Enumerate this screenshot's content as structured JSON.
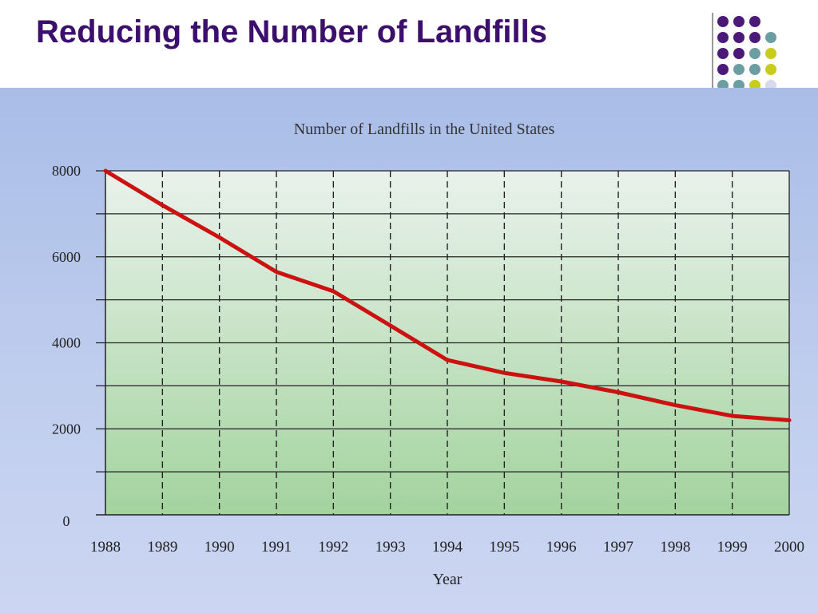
{
  "slide": {
    "title": "Reducing the Number of Landfills"
  },
  "colors": {
    "title": "#3b0f6b",
    "line": "#cc1111",
    "purple": "#4b1a78",
    "teal": "#6b9ea0",
    "lime": "#c8cc1a",
    "lavender": "#d8d8ee"
  },
  "decor_dots": [
    [
      "purple",
      "purple",
      "purple",
      null
    ],
    [
      "purple",
      "purple",
      "purple",
      "teal"
    ],
    [
      "purple",
      "purple",
      "teal",
      "lime"
    ],
    [
      "purple",
      "teal",
      "teal",
      "lime"
    ],
    [
      "teal",
      "teal",
      "lime",
      "lavender"
    ]
  ],
  "chart_data": {
    "type": "line",
    "title": "Number of Landfills in the United States",
    "xlabel": "Year",
    "ylabel": "",
    "categories": [
      "1988",
      "1989",
      "1990",
      "1991",
      "1992",
      "1993",
      "1994",
      "1995",
      "1996",
      "1997",
      "1998",
      "1999",
      "2000"
    ],
    "series": [
      {
        "values": [
          8000,
          7200,
          6450,
          5650,
          5200,
          4400,
          3600,
          3300,
          3100,
          2850,
          2550,
          2300,
          2200
        ]
      }
    ],
    "ylim": [
      0,
      8000
    ],
    "yticks": [
      0,
      2000,
      4000,
      6000,
      8000
    ],
    "grid": {
      "horizontal_step": 1000,
      "vertical": "dashed"
    },
    "legend": "none"
  }
}
